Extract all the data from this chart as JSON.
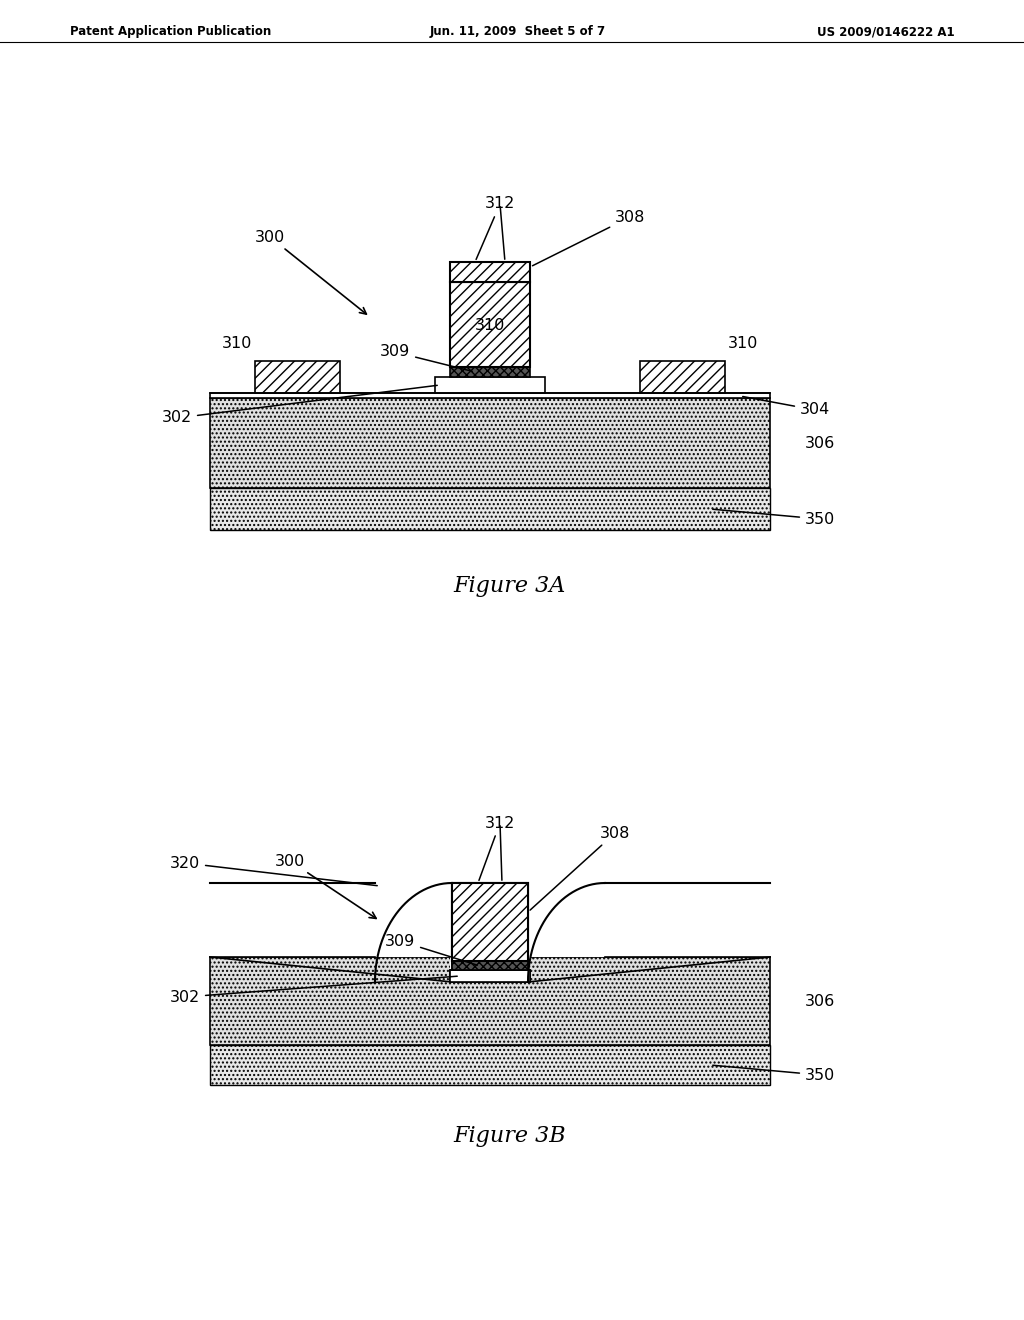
{
  "header_left": "Patent Application Publication",
  "header_center": "Jun. 11, 2009  Sheet 5 of 7",
  "header_right": "US 2009/0146222 A1",
  "fig3a_caption": "Figure 3A",
  "fig3b_caption": "Figure 3B",
  "bg_color": "#ffffff",
  "line_color": "#000000"
}
